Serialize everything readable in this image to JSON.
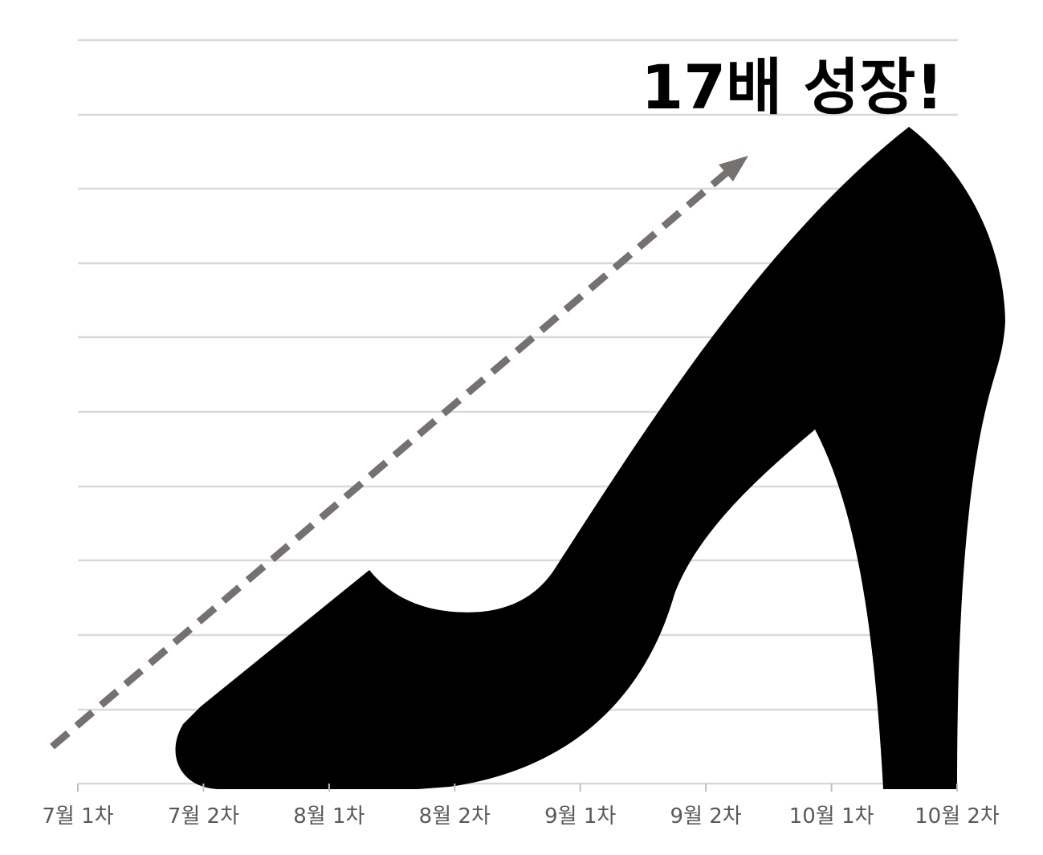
{
  "chart_data": {
    "type": "infographic",
    "title": "17배 성장!",
    "categories": [
      "7월 1차",
      "7월 2차",
      "8월 1차",
      "8월 2차",
      "9월 1차",
      "9월 2차",
      "10월 1차",
      "10월 2차"
    ]
  }
}
